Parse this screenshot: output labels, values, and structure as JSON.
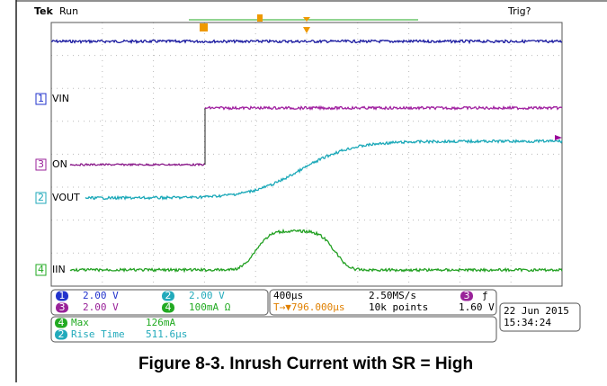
{
  "header": {
    "brand": "Tek",
    "status": "Run",
    "trigger_status": "Trig?"
  },
  "traces": [
    {
      "badge": "1",
      "label": "VIN"
    },
    {
      "badge": "3",
      "label": "ON"
    },
    {
      "badge": "2",
      "label": "VOUT"
    },
    {
      "badge": "4",
      "label": "IIN"
    }
  ],
  "scales": [
    {
      "badge": "1",
      "text": "2.00 V"
    },
    {
      "badge": "2",
      "text": "2.00 V"
    },
    {
      "badge": "3",
      "text": "2.00 V"
    },
    {
      "badge": "4",
      "text": "100mA Ω"
    }
  ],
  "timebase": {
    "time_div": "400µs",
    "sample_rate": "2.50MS/s",
    "trigger_badge": "3",
    "trigger_slope": "ƒ",
    "trigger_pos": "T→▼796.000µs",
    "record": "10k points",
    "trigger_level": "1.60 V"
  },
  "date": {
    "day": "22 Jun 2015",
    "time": "15:34:24"
  },
  "measurements": [
    {
      "badge": "4",
      "name": "Max",
      "value": "126mA"
    },
    {
      "badge": "2",
      "name": "Rise Time",
      "value": "511.6µs"
    }
  ],
  "caption": "Figure 8-3. Inrush Current with SR = High"
}
